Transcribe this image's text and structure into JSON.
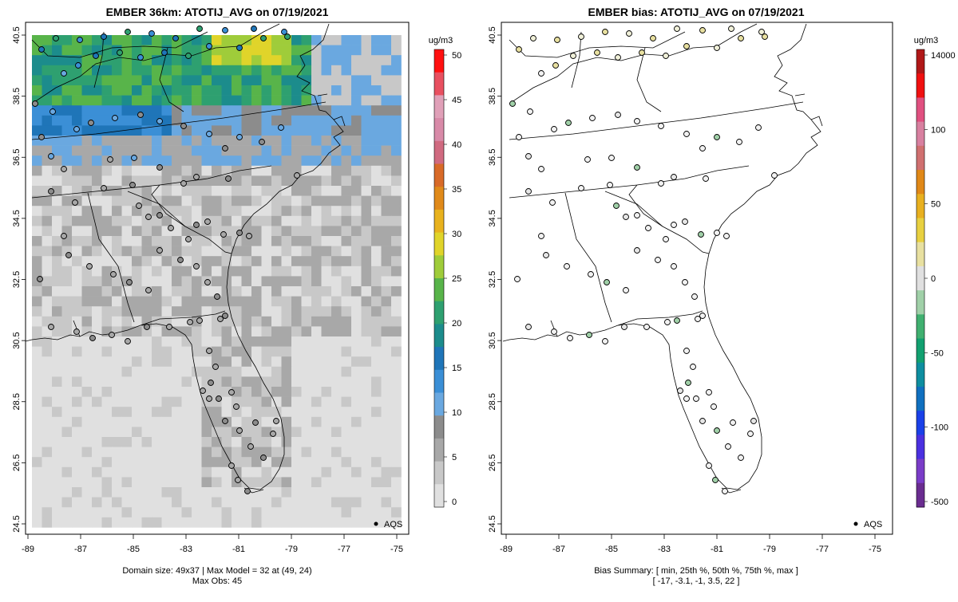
{
  "left_panel": {
    "title": "EMBER 36km: ATOTIJ_AVG on 07/19/2021",
    "caption_line1": "Domain size: 49x37 | Max Model = 32 at (49, 24)",
    "caption_line2": "Max Obs: 45",
    "legend_label": "AQS",
    "colorbar_unit": "ug/m3",
    "colorbar_ticks": [
      "0",
      "5",
      "10",
      "15",
      "20",
      "25",
      "30",
      "35",
      "40",
      "45",
      "50"
    ],
    "colorbar_colors": [
      "#e0e0e0",
      "#c8c8c8",
      "#a8a8a8",
      "#8c8c8c",
      "#6aa8e0",
      "#3b8fd6",
      "#1f75b8",
      "#1c8c8c",
      "#2ea070",
      "#58b44a",
      "#9fcc3a",
      "#e0d42a",
      "#e8b21e",
      "#e08a1a",
      "#d86a28",
      "#d06a80",
      "#d88aa8",
      "#e0a0b8",
      "#e85060",
      "#ff1010"
    ]
  },
  "right_panel": {
    "title": "EMBER bias: ATOTIJ_AVG on 07/19/2021",
    "caption_line1": "Bias Summary: [ min, 25th %, 50th %, 75th %, max ]",
    "caption_line2": "[ -17,   -3.1,   -1,   3.5,   22 ]",
    "legend_label": "AQS",
    "colorbar_unit": "ug/m3",
    "colorbar_ticks": [
      "-500",
      "-100",
      "-50",
      "0",
      "50",
      "100",
      "14000"
    ],
    "colorbar_colors": [
      "#6a2c90",
      "#7a3cc8",
      "#4a30e0",
      "#1a40e8",
      "#1070c0",
      "#0e8ea0",
      "#12a070",
      "#40b070",
      "#a0d0a8",
      "#e0e0e0",
      "#e8e0a0",
      "#e8d040",
      "#e8b020",
      "#e08818",
      "#d07070",
      "#d880a0",
      "#e05080",
      "#f01010",
      "#b01818"
    ]
  },
  "map": {
    "lat_ticks": [
      "40.5",
      "38.5",
      "36.5",
      "34.5",
      "32.5",
      "30.5",
      "28.5",
      "26.5",
      "24.5"
    ],
    "lon_ticks": [
      "-89",
      "-87",
      "-85",
      "-83",
      "-81",
      "-79",
      "-77",
      "-75"
    ]
  }
}
